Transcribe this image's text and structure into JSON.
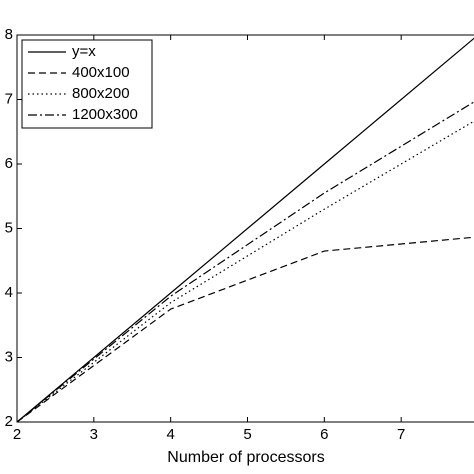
{
  "chart_data": {
    "type": "line",
    "xlabel": "Number of processors",
    "x": [
      2,
      4,
      6,
      8
    ],
    "series": [
      {
        "name": "y=x",
        "color": "#000000",
        "dash": "solid",
        "values": [
          2,
          4,
          6,
          8
        ]
      },
      {
        "name": "400x100",
        "color": "#000000",
        "dash": "dashed",
        "values": [
          2,
          3.75,
          4.65,
          4.87
        ]
      },
      {
        "name": "800x200",
        "color": "#000000",
        "dash": "dotted",
        "values": [
          2,
          3.85,
          5.3,
          6.7
        ]
      },
      {
        "name": "1200x300",
        "color": "#000000",
        "dash": "dashdot",
        "values": [
          2,
          3.95,
          5.55,
          7.0
        ]
      }
    ],
    "xlim": [
      2,
      8
    ],
    "ylim": [
      2,
      8
    ],
    "xticks": [
      2,
      3,
      4,
      5,
      6,
      7
    ],
    "yticks": [
      2,
      3,
      4,
      5,
      6,
      7,
      8
    ],
    "legend": "upper left"
  }
}
